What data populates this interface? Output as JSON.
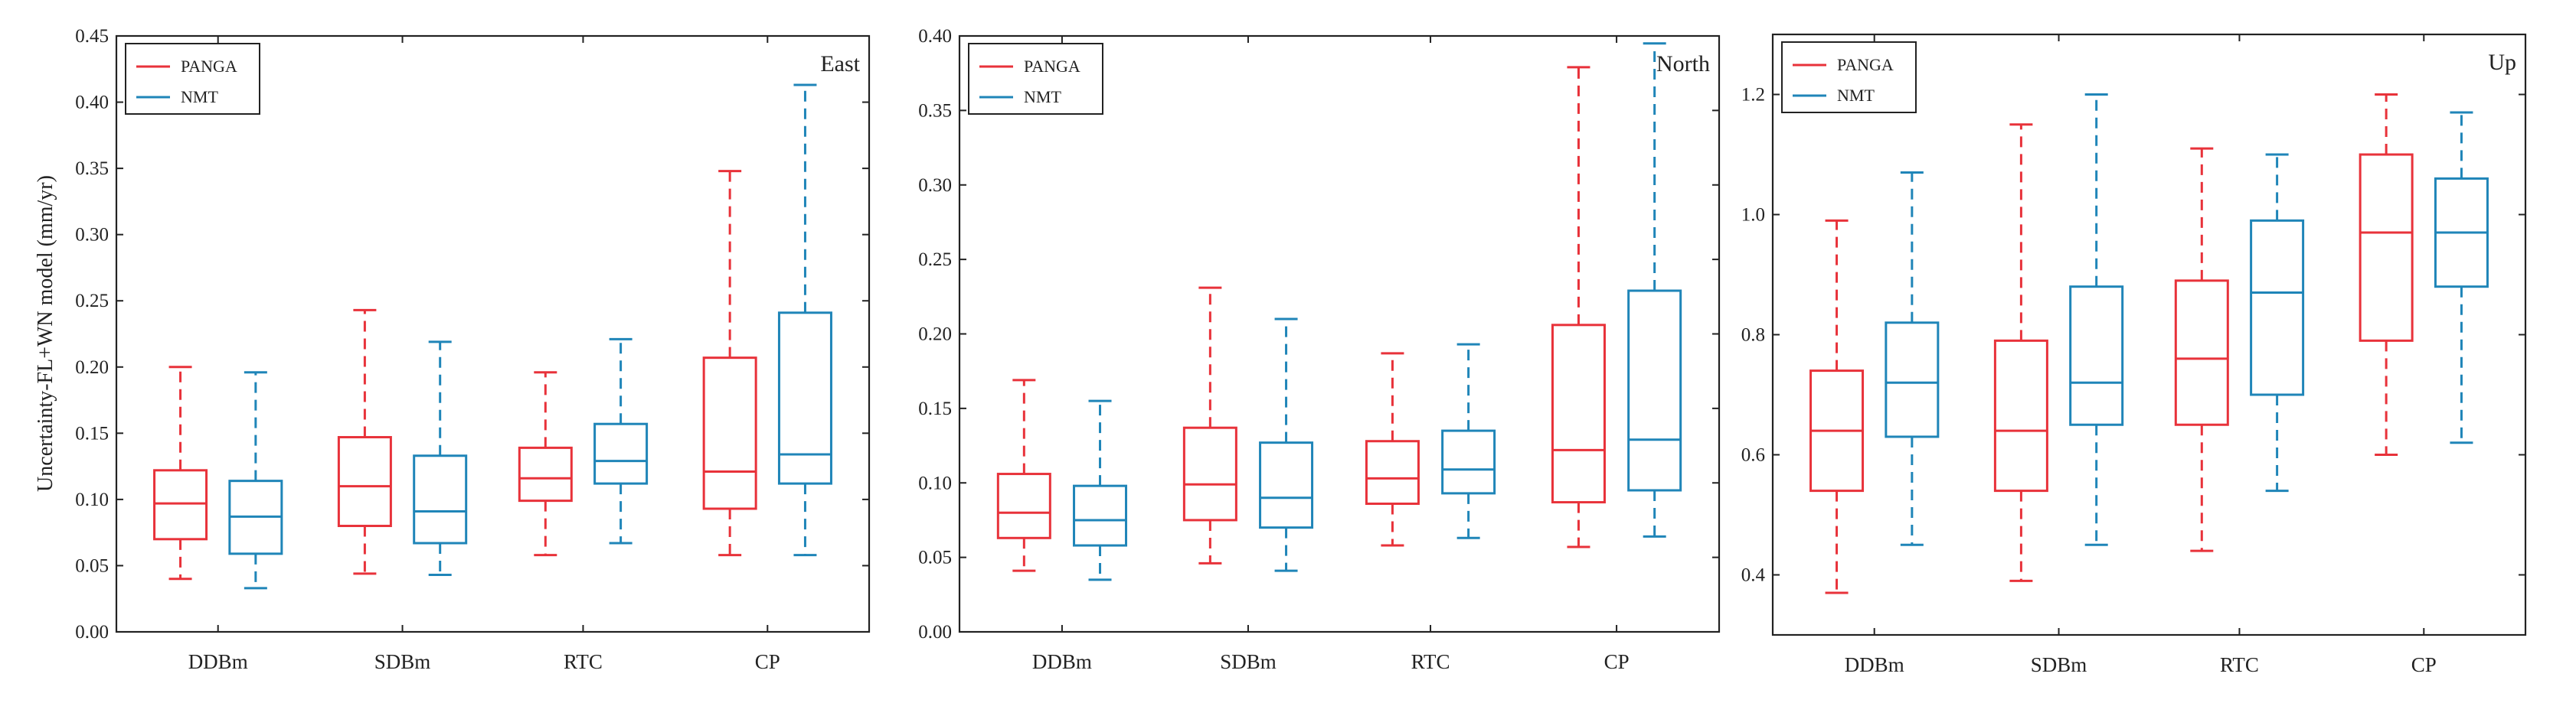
{
  "figure": {
    "ylabel": "Uncertainty-FL+WN model (mm/yr)",
    "legend_entries": [
      "PANGA",
      "NMT"
    ]
  },
  "colors": {
    "panga_dark": "#e8323a",
    "panga_light": "#f58c8c",
    "nmt_dark": "#1f85b8",
    "nmt_light": "#67b4dc"
  },
  "chart_data": [
    {
      "type": "boxplot",
      "title": "East",
      "xlabel": "",
      "ylabel": "Uncertainty-FL+WN model (mm/yr)",
      "categories": [
        "DDBm",
        "SDBm",
        "RTC",
        "CP"
      ],
      "ylim": [
        0.0,
        0.45
      ],
      "yticks": [
        0.0,
        0.05,
        0.1,
        0.15,
        0.2,
        0.25,
        0.3,
        0.35,
        0.4,
        0.45
      ],
      "ytick_labels": [
        "0.00",
        "0.05",
        "0.10",
        "0.15",
        "0.20",
        "0.25",
        "0.30",
        "0.35",
        "0.40",
        "0.45"
      ],
      "legend": [
        "PANGA",
        "NMT"
      ],
      "legend_position": "top-left",
      "series": [
        {
          "name": "PANGA",
          "boxes": [
            {
              "category": "DDBm",
              "whislo": 0.04,
              "q1": 0.07,
              "med": 0.097,
              "q3": 0.122,
              "whishi": 0.2,
              "tone": "dark"
            },
            {
              "category": "SDBm",
              "whislo": 0.044,
              "q1": 0.08,
              "med": 0.11,
              "q3": 0.147,
              "whishi": 0.243,
              "tone": "dark"
            },
            {
              "category": "RTC",
              "whislo": 0.058,
              "q1": 0.099,
              "med": 0.116,
              "q3": 0.139,
              "whishi": 0.196,
              "tone": "dark"
            },
            {
              "category": "CP",
              "whislo": 0.058,
              "q1": 0.093,
              "med": 0.121,
              "q3": 0.207,
              "whishi": 0.348,
              "tone": "dark"
            }
          ]
        },
        {
          "name": "NMT",
          "boxes": [
            {
              "category": "DDBm",
              "whislo": 0.033,
              "q1": 0.059,
              "med": 0.087,
              "q3": 0.114,
              "whishi": 0.196,
              "tone": "dark"
            },
            {
              "category": "SDBm",
              "whislo": 0.043,
              "q1": 0.067,
              "med": 0.091,
              "q3": 0.133,
              "whishi": 0.219,
              "tone": "dark"
            },
            {
              "category": "RTC",
              "whislo": 0.067,
              "q1": 0.112,
              "med": 0.129,
              "q3": 0.157,
              "whishi": 0.221,
              "tone": "dark"
            },
            {
              "category": "CP",
              "whislo": 0.058,
              "q1": 0.112,
              "med": 0.134,
              "q3": 0.241,
              "whishi": 0.413,
              "tone": "dark"
            }
          ]
        }
      ]
    },
    {
      "type": "boxplot",
      "title": "North",
      "xlabel": "",
      "ylabel": "",
      "categories": [
        "DDBm",
        "SDBm",
        "RTC",
        "CP"
      ],
      "ylim": [
        0.0,
        0.4
      ],
      "yticks": [
        0.0,
        0.05,
        0.1,
        0.15,
        0.2,
        0.25,
        0.3,
        0.35,
        0.4
      ],
      "ytick_labels": [
        "0.00",
        "0.05",
        "0.10",
        "0.15",
        "0.20",
        "0.25",
        "0.30",
        "0.35",
        "0.40"
      ],
      "legend": [
        "PANGA",
        "NMT"
      ],
      "legend_position": "top-left",
      "series": [
        {
          "name": "PANGA",
          "boxes": [
            {
              "category": "DDBm",
              "whislo": 0.041,
              "q1": 0.063,
              "med": 0.08,
              "q3": 0.106,
              "whishi": 0.169,
              "tone": "dark"
            },
            {
              "category": "SDBm",
              "whislo": 0.046,
              "q1": 0.075,
              "med": 0.099,
              "q3": 0.137,
              "whishi": 0.231,
              "tone": "dark"
            },
            {
              "category": "RTC",
              "whislo": 0.058,
              "q1": 0.086,
              "med": 0.103,
              "q3": 0.128,
              "whishi": 0.187,
              "tone": "dark"
            },
            {
              "category": "CP",
              "whislo": 0.057,
              "q1": 0.087,
              "med": 0.122,
              "q3": 0.206,
              "whishi": 0.379,
              "tone": "dark"
            }
          ]
        },
        {
          "name": "NMT",
          "boxes": [
            {
              "category": "DDBm",
              "whislo": 0.035,
              "q1": 0.058,
              "med": 0.075,
              "q3": 0.098,
              "whishi": 0.155,
              "tone": "dark"
            },
            {
              "category": "SDBm",
              "whislo": 0.041,
              "q1": 0.07,
              "med": 0.09,
              "q3": 0.127,
              "whishi": 0.21,
              "tone": "dark"
            },
            {
              "category": "RTC",
              "whislo": 0.063,
              "q1": 0.093,
              "med": 0.109,
              "q3": 0.135,
              "whishi": 0.193,
              "tone": "dark"
            },
            {
              "category": "CP",
              "whislo": 0.064,
              "q1": 0.095,
              "med": 0.129,
              "q3": 0.229,
              "whishi": 0.395,
              "tone": "dark"
            }
          ]
        }
      ]
    },
    {
      "type": "boxplot",
      "title": "Up",
      "xlabel": "",
      "ylabel": "",
      "categories": [
        "DDBm",
        "SDBm",
        "RTC",
        "CP"
      ],
      "ylim": [
        0.3,
        1.3
      ],
      "yticks": [
        0.4,
        0.6,
        0.8,
        1.0,
        1.2
      ],
      "ytick_labels": [
        "0.4",
        "0.6",
        "0.8",
        "1.0",
        "1.2"
      ],
      "legend": [
        "PANGA",
        "NMT"
      ],
      "legend_position": "top-left",
      "series": [
        {
          "name": "PANGA",
          "boxes": [
            {
              "category": "DDBm",
              "whislo": 0.37,
              "q1": 0.54,
              "med": 0.64,
              "q3": 0.74,
              "whishi": 0.99,
              "tone": "dark"
            },
            {
              "category": "SDBm",
              "whislo": 0.39,
              "q1": 0.54,
              "med": 0.64,
              "q3": 0.79,
              "whishi": 1.15,
              "tone": "dark"
            },
            {
              "category": "RTC",
              "whislo": 0.44,
              "q1": 0.65,
              "med": 0.76,
              "q3": 0.89,
              "whishi": 1.11,
              "tone": "dark"
            },
            {
              "category": "CP",
              "whislo": 0.6,
              "q1": 0.79,
              "med": 0.97,
              "q3": 1.1,
              "whishi": 1.2,
              "tone": "dark"
            }
          ]
        },
        {
          "name": "NMT",
          "boxes": [
            {
              "category": "DDBm",
              "whislo": 0.45,
              "q1": 0.63,
              "med": 0.72,
              "q3": 0.82,
              "whishi": 1.07,
              "tone": "dark"
            },
            {
              "category": "SDBm",
              "whislo": 0.45,
              "q1": 0.65,
              "med": 0.72,
              "q3": 0.88,
              "whishi": 1.2,
              "tone": "dark"
            },
            {
              "category": "RTC",
              "whislo": 0.54,
              "q1": 0.7,
              "med": 0.87,
              "q3": 0.99,
              "whishi": 1.1,
              "tone": "dark"
            },
            {
              "category": "CP",
              "whislo": 0.62,
              "q1": 0.88,
              "med": 0.97,
              "q3": 1.06,
              "whishi": 1.17,
              "tone": "dark"
            }
          ]
        }
      ]
    }
  ]
}
